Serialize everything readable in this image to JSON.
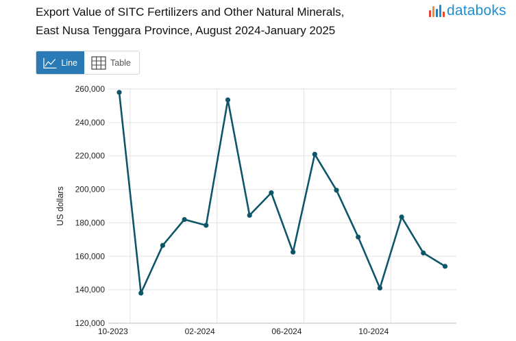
{
  "title": {
    "line1": "Export Value of SITC Fertilizers and Other Natural Minerals,",
    "line2": "East Nusa Tenggara Province, August 2024-January 2025"
  },
  "brand": {
    "name": "databoks",
    "text_color": "#1d8fd1",
    "mark_colors": [
      "#e8452e",
      "#f08c2d",
      "#2a7ab6",
      "#1d8fd1",
      "#e8452e"
    ]
  },
  "view_toggle": {
    "line_label": "Line",
    "table_label": "Table",
    "line_icon": "line-chart-icon",
    "table_icon": "table-grid-icon",
    "active_color": "#2a7ab6"
  },
  "chart_data": {
    "type": "line",
    "title": "Export Value of SITC Fertilizers and Other Natural Minerals, East Nusa Tenggara Province, August 2024-January 2025",
    "xlabel": "",
    "ylabel": "US dollars",
    "ylim": [
      120000,
      260000
    ],
    "yticks": [
      120000,
      140000,
      160000,
      180000,
      200000,
      220000,
      240000,
      260000
    ],
    "ytick_labels": [
      "120,000",
      "140,000",
      "160,000",
      "180,000",
      "200,000",
      "220,000",
      "240,000",
      "260,000"
    ],
    "xtick_labels": [
      "10-2023",
      "02-2024",
      "06-2024",
      "10-2024"
    ],
    "xtick_index": [
      0.5,
      4.5,
      8.5,
      12.5
    ],
    "grid": true,
    "line_color": "#0d5569",
    "series": [
      {
        "name": "US dollars",
        "values": [
          258000,
          138000,
          166500,
          182000,
          178500,
          253500,
          184500,
          198000,
          162500,
          221000,
          199500,
          171500,
          141000,
          183500,
          162000,
          154000
        ]
      }
    ]
  }
}
